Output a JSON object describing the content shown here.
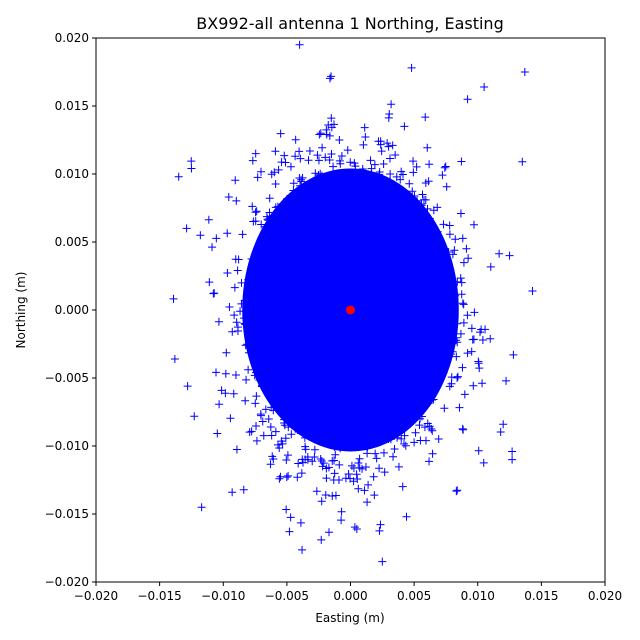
{
  "chart_data": {
    "type": "scatter",
    "title": "BX992-all antenna 1 Northing, Easting",
    "xlabel": "Easting (m)",
    "ylabel": "Northing (m)",
    "xlim": [
      -0.02,
      0.02
    ],
    "ylim": [
      -0.02,
      0.02
    ],
    "x_ticks": [
      "−0.020",
      "−0.015",
      "−0.010",
      "−0.005",
      "0.000",
      "0.005",
      "0.010",
      "0.015",
      "0.020"
    ],
    "y_ticks": [
      "−0.020",
      "−0.015",
      "−0.010",
      "−0.005",
      "0.000",
      "0.005",
      "0.010",
      "0.015",
      "0.020"
    ],
    "grid": false,
    "series": [
      {
        "marker": "+",
        "color": "#0000ff",
        "description_of_spread": "dense elliptical cloud centered near (0, 0)",
        "x_std": 0.0037,
        "y_std": 0.0052,
        "points": [
          [
            0.0137,
            0.0175
          ],
          [
            -0.004,
            0.0195
          ],
          [
            -0.0135,
            0.0098
          ],
          [
            0.0143,
            0.0014
          ],
          [
            -0.0138,
            -0.0036
          ],
          [
            0.0025,
            -0.0185
          ],
          [
            -0.0023,
            -0.0169
          ],
          [
            0.0128,
            -0.0033
          ],
          [
            0.0127,
            -0.0104
          ],
          [
            -0.0117,
            -0.0145
          ],
          [
            0.0127,
            -0.011
          ],
          [
            0.0005,
            -0.0161
          ],
          [
            0.0048,
            0.0178
          ],
          [
            0.0105,
            0.0164
          ],
          [
            -0.0125,
            0.0104
          ],
          [
            0.0135,
            0.0109
          ],
          [
            -0.0128,
            -0.0056
          ],
          [
            -0.0048,
            -0.0163
          ],
          [
            0.0044,
            -0.0152
          ],
          [
            0.0092,
            0.0155
          ],
          [
            -0.0093,
            -0.0134
          ],
          [
            0.012,
            -0.0084
          ],
          [
            -0.0118,
            0.0055
          ],
          [
            0.0125,
            0.004
          ]
        ]
      },
      {
        "marker": "o",
        "color": "#ff0000",
        "points": [
          [
            0.0,
            0.0
          ]
        ]
      }
    ]
  }
}
